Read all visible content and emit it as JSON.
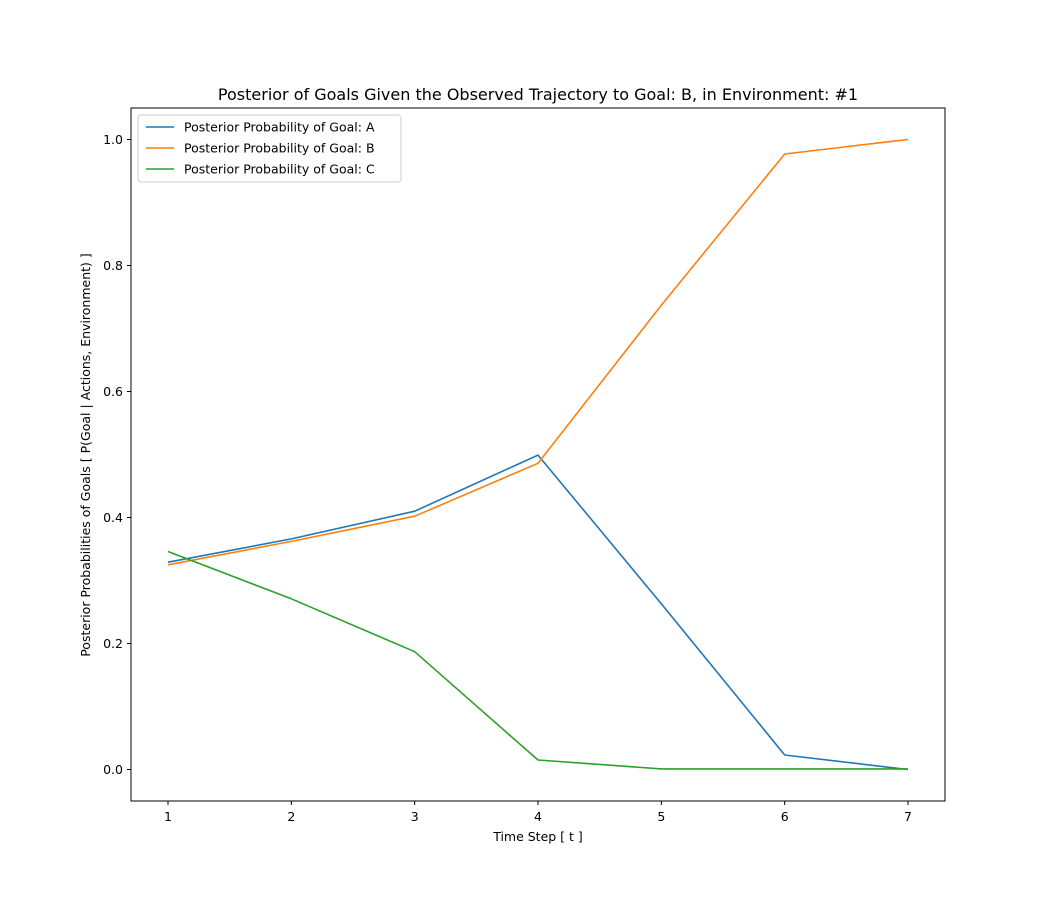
{
  "chart_data": {
    "type": "line",
    "title": "Posterior of Goals Given the Observed Trajectory to Goal: B, in Environment: #1",
    "xlabel": "Time Step [ t ]",
    "ylabel": "Posterior Probabilities of Goals [ P(Goal | Actions, Environment) ]",
    "x": [
      1,
      2,
      3,
      4,
      5,
      6,
      7
    ],
    "xlim": [
      0.7,
      7.3
    ],
    "ylim": [
      -0.05,
      1.05
    ],
    "xticks": [
      "1",
      "2",
      "3",
      "4",
      "5",
      "6",
      "7"
    ],
    "yticks": [
      "0.0",
      "0.2",
      "0.4",
      "0.6",
      "0.8",
      "1.0"
    ],
    "grid": false,
    "legend_position": "top-left",
    "series": [
      {
        "name": "Posterior Probability of Goal: A",
        "color": "#1f77b4",
        "values": [
          0.329,
          0.366,
          0.41,
          0.499,
          0.263,
          0.023,
          0.0
        ]
      },
      {
        "name": "Posterior Probability of Goal: B",
        "color": "#ff7f0e",
        "values": [
          0.325,
          0.362,
          0.402,
          0.486,
          0.737,
          0.977,
          1.0
        ]
      },
      {
        "name": "Posterior Probability of Goal: C",
        "color": "#2ca02c",
        "values": [
          0.346,
          0.271,
          0.187,
          0.015,
          0.001,
          0.001,
          0.001
        ]
      }
    ]
  }
}
